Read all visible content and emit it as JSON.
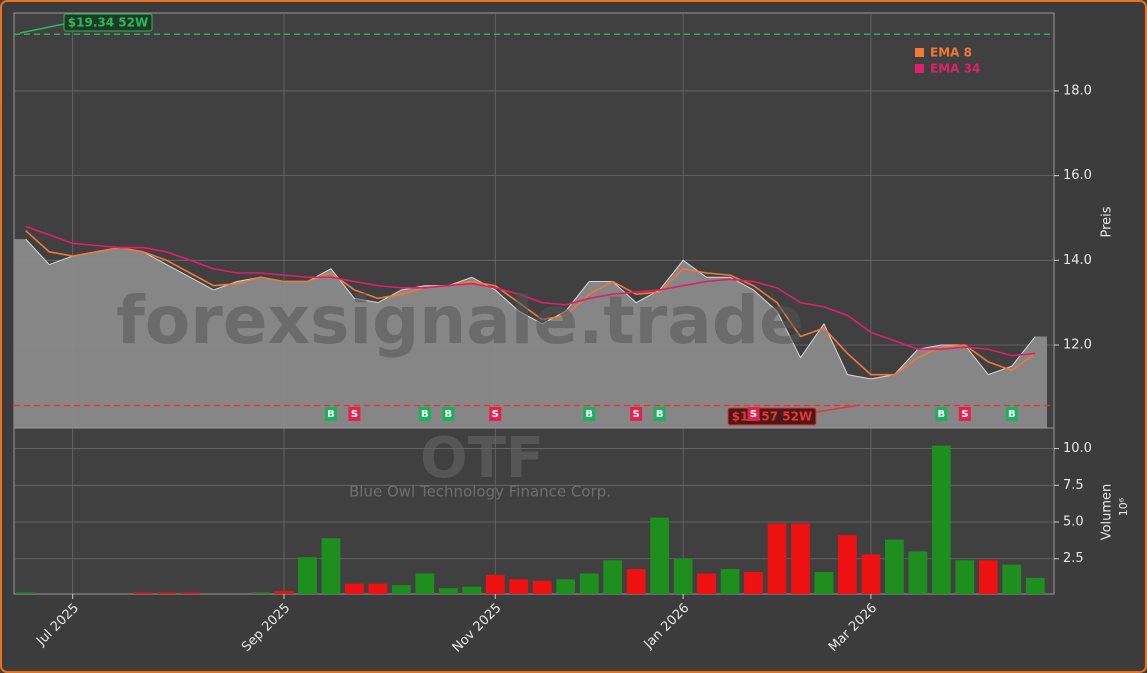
{
  "chart_data": [
    {
      "type": "area",
      "ylabel": "Preis",
      "watermark": "forexsignale.trade",
      "symbol": "OTF",
      "company": "Blue Owl Technology Finance Corp.",
      "color": "#8a8a8a",
      "values": [
        14.5,
        13.9,
        14.1,
        14.2,
        14.3,
        14.2,
        13.9,
        13.6,
        13.3,
        13.5,
        13.6,
        13.5,
        13.5,
        13.8,
        13.1,
        13.0,
        13.3,
        13.4,
        13.4,
        13.6,
        13.3,
        12.8,
        12.5,
        12.8,
        13.5,
        13.5,
        13.0,
        13.3,
        14.0,
        13.6,
        13.6,
        13.3,
        12.8,
        11.7,
        12.5,
        11.3,
        11.2,
        11.3,
        11.9,
        12.0,
        12.0,
        11.3,
        11.5,
        12.2
      ],
      "series": [
        {
          "name": "EMA 8",
          "color": "#f07838",
          "values": [
            14.7,
            14.2,
            14.1,
            14.2,
            14.3,
            14.2,
            14.0,
            13.7,
            13.4,
            13.45,
            13.6,
            13.5,
            13.5,
            13.7,
            13.3,
            13.1,
            13.2,
            13.35,
            13.4,
            13.5,
            13.4,
            13.0,
            12.6,
            12.7,
            13.2,
            13.5,
            13.2,
            13.25,
            13.8,
            13.7,
            13.65,
            13.4,
            13.0,
            12.2,
            12.4,
            11.8,
            11.3,
            11.3,
            11.7,
            11.95,
            12.0,
            11.6,
            11.4,
            11.8
          ]
        },
        {
          "name": "EMA 34",
          "color": "#e0206a",
          "values": [
            14.8,
            14.6,
            14.4,
            14.35,
            14.3,
            14.3,
            14.2,
            14.0,
            13.8,
            13.7,
            13.7,
            13.65,
            13.6,
            13.6,
            13.5,
            13.4,
            13.35,
            13.35,
            13.4,
            13.45,
            13.35,
            13.2,
            13.0,
            12.95,
            13.1,
            13.2,
            13.25,
            13.3,
            13.4,
            13.5,
            13.55,
            13.5,
            13.35,
            13.0,
            12.9,
            12.7,
            12.3,
            12.1,
            11.9,
            11.9,
            11.95,
            11.9,
            11.75,
            11.8
          ]
        }
      ],
      "ylim": [
        10.04,
        19.84
      ],
      "yticks": [
        {
          "value": 12,
          "label": "12.0"
        },
        {
          "value": 14,
          "label": "14.0"
        },
        {
          "value": 16,
          "label": "16.0"
        },
        {
          "value": 18,
          "label": "18.0"
        }
      ],
      "grid": true,
      "legend": "upper right",
      "high_52w": {
        "value": 19.34,
        "label": "$19.34 52W",
        "color": "#2eb85c"
      },
      "low_52w": {
        "value": 10.57,
        "label": "$10.57 52W",
        "color": "#ee3333"
      },
      "signals": [
        null,
        null,
        null,
        null,
        null,
        null,
        null,
        null,
        null,
        null,
        null,
        null,
        null,
        "B",
        "S",
        null,
        null,
        "B",
        "B",
        null,
        "S",
        null,
        null,
        null,
        "B",
        null,
        "S",
        "B",
        null,
        null,
        null,
        "S",
        null,
        null,
        null,
        null,
        null,
        null,
        null,
        "B",
        "S",
        null,
        "B",
        null
      ],
      "buy_color": "#17b35a",
      "sell_color": "#e8204a"
    },
    {
      "type": "bar",
      "ylabel": "Volumen",
      "scale_label": "10⁶",
      "categories": [
        null,
        null,
        "Jul 2025",
        null,
        null,
        null,
        null,
        null,
        null,
        null,
        null,
        "Sep 2025",
        null,
        null,
        null,
        null,
        null,
        null,
        null,
        null,
        "Nov 2025",
        null,
        null,
        null,
        null,
        null,
        null,
        null,
        "Jan 2026",
        null,
        null,
        null,
        null,
        null,
        null,
        null,
        "Mar 2026",
        null,
        null,
        null,
        null,
        null,
        null,
        null
      ],
      "values": [
        0.2,
        0.1,
        0.1,
        0.1,
        0.1,
        0.2,
        0.2,
        0.2,
        0.1,
        0.1,
        0.2,
        0.3,
        2.6,
        3.9,
        0.8,
        0.8,
        0.7,
        1.5,
        0.5,
        0.6,
        1.4,
        1.1,
        1.0,
        1.1,
        1.5,
        2.4,
        1.8,
        5.3,
        2.5,
        1.5,
        1.8,
        1.6,
        4.9,
        4.9,
        1.6,
        4.1,
        2.8,
        3.8,
        3.0,
        10.2,
        2.4,
        2.4,
        2.1,
        1.2
      ],
      "up_color": "#1e8f1e",
      "down_color": "#ee1111",
      "ylim": [
        0.1,
        11.4
      ],
      "yticks": [
        2.5,
        {
          "value": 5,
          "label": "5.0"
        },
        7.5,
        {
          "value": 10,
          "label": "10.0"
        }
      ],
      "grid": true
    }
  ]
}
